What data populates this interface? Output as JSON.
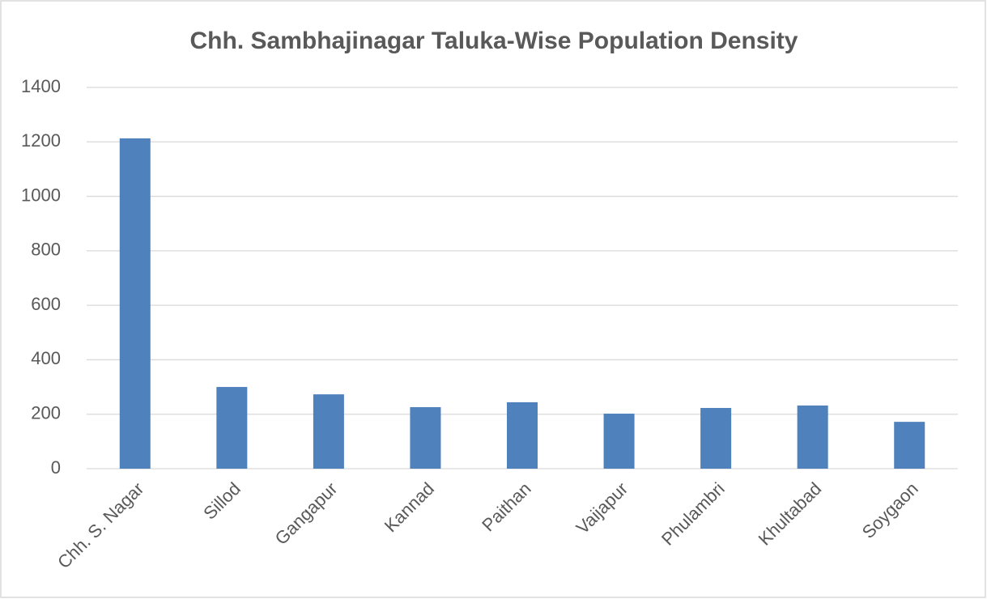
{
  "chart_data": {
    "type": "bar",
    "title": "Chh. Sambhajinagar Taluka-Wise Population Density",
    "categories": [
      "Chh. S. Nagar",
      "Sillod",
      "Gangapur",
      "Kannad",
      "Paithan",
      "Vaijapur",
      "Phulambri",
      "Khultabad",
      "Soygaon"
    ],
    "values": [
      1213,
      300,
      273,
      226,
      244,
      202,
      223,
      232,
      172
    ],
    "color": "#4f81bd",
    "ylim": [
      0,
      1400
    ],
    "yticks": [
      0,
      200,
      400,
      600,
      800,
      1000,
      1200,
      1400
    ],
    "grid": true
  }
}
